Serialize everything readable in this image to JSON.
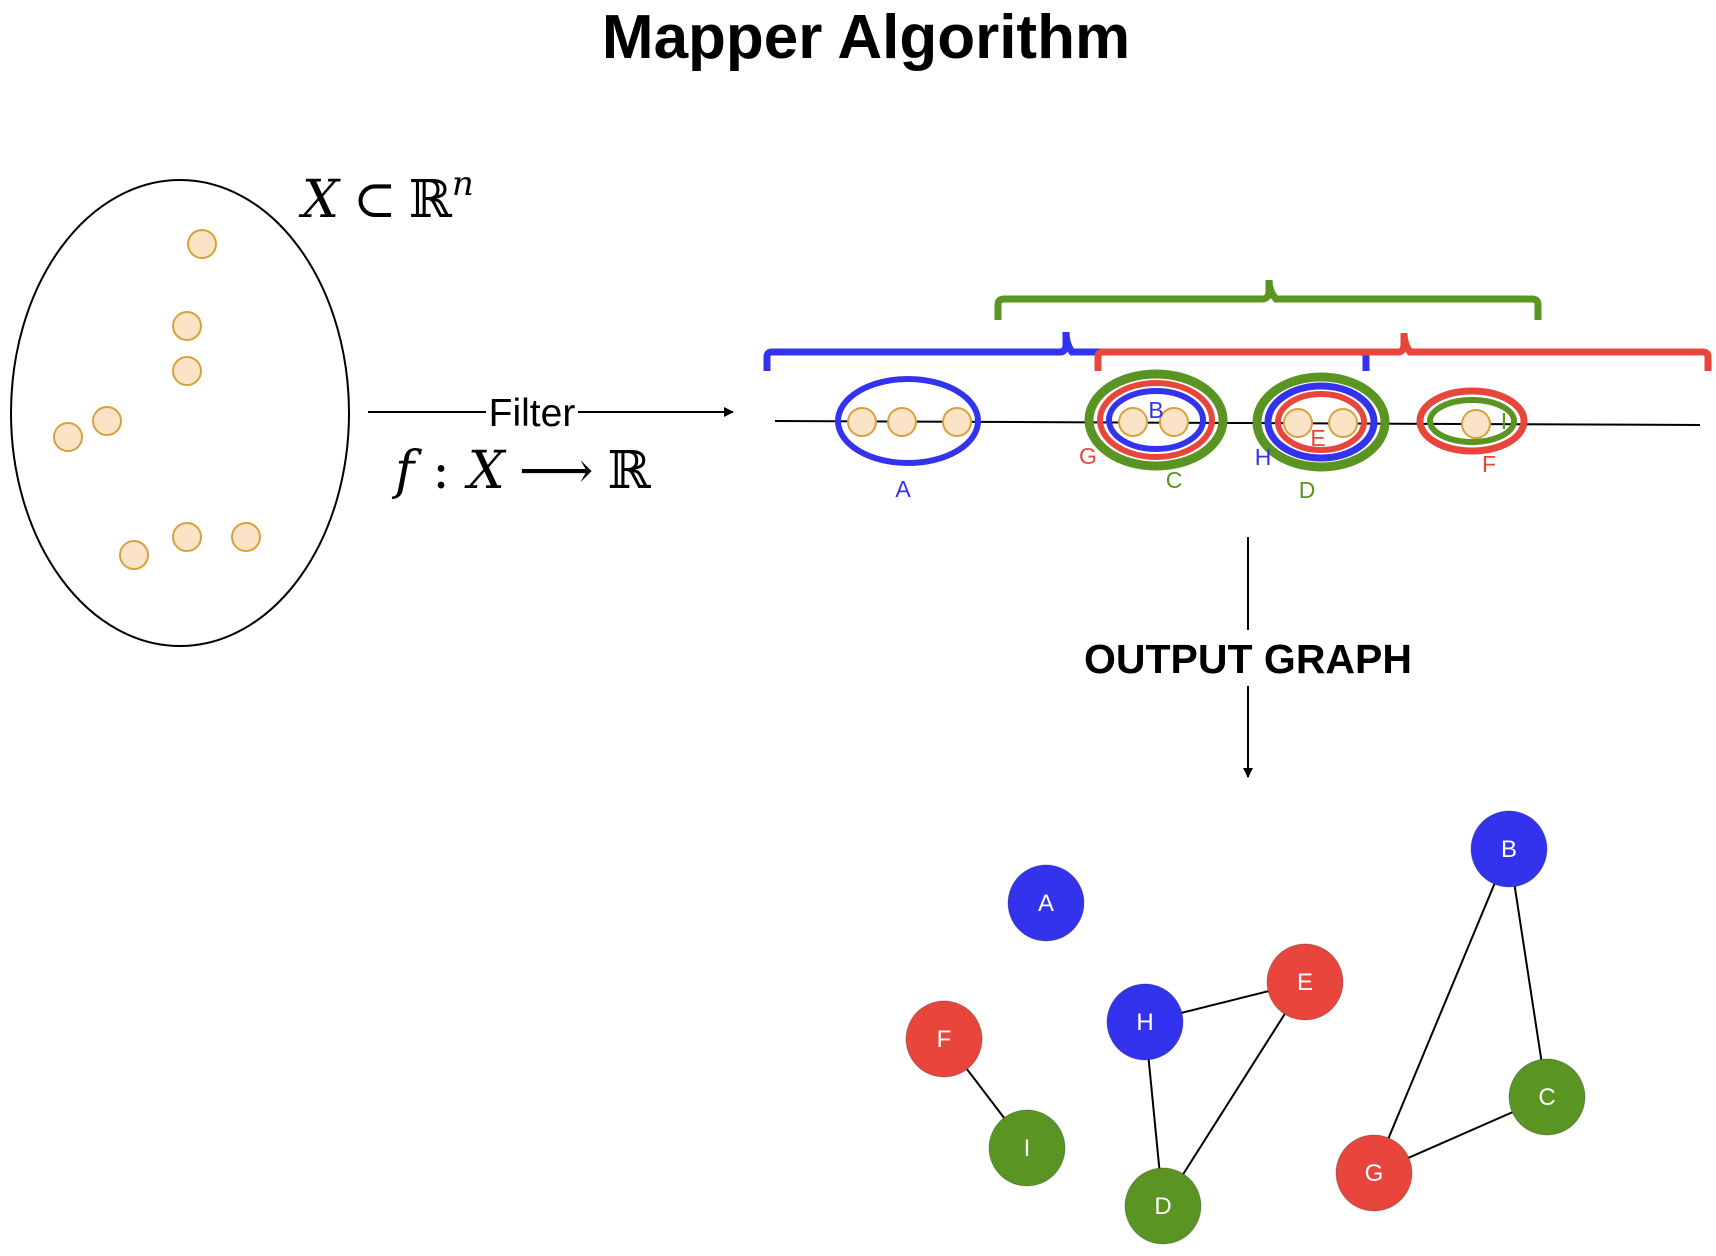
{
  "title": "Mapper Algorithm",
  "space_label": {
    "X": "X",
    "subset": "⊂",
    "R": "ℝ",
    "n": "n"
  },
  "filter": {
    "label": "Filter",
    "f": "f",
    "colon": ":",
    "X": "X",
    "arrow": "⟶",
    "R": "ℝ"
  },
  "output_label": "OUTPUT GRAPH",
  "colors": {
    "blue": "#3333ee",
    "red": "#e8453c",
    "green": "#5a9423",
    "point_fill": "#fbe3c7",
    "point_stroke": "#d6a23b"
  },
  "interval_labels": {
    "A": "A",
    "B": "B",
    "C": "C",
    "D": "D",
    "E": "E",
    "F": "F",
    "G": "G",
    "H": "H",
    "I": "I"
  },
  "graph": {
    "nodes": [
      {
        "id": "A",
        "label": "A",
        "color": "blue"
      },
      {
        "id": "B",
        "label": "B",
        "color": "blue"
      },
      {
        "id": "C",
        "label": "C",
        "color": "green"
      },
      {
        "id": "D",
        "label": "D",
        "color": "green"
      },
      {
        "id": "E",
        "label": "E",
        "color": "red"
      },
      {
        "id": "F",
        "label": "F",
        "color": "red"
      },
      {
        "id": "G",
        "label": "G",
        "color": "red"
      },
      {
        "id": "H",
        "label": "H",
        "color": "blue"
      },
      {
        "id": "I",
        "label": "I",
        "color": "green"
      }
    ],
    "edges": [
      [
        "F",
        "I"
      ],
      [
        "H",
        "E"
      ],
      [
        "H",
        "D"
      ],
      [
        "E",
        "D"
      ],
      [
        "B",
        "G"
      ],
      [
        "B",
        "C"
      ],
      [
        "G",
        "C"
      ]
    ]
  }
}
